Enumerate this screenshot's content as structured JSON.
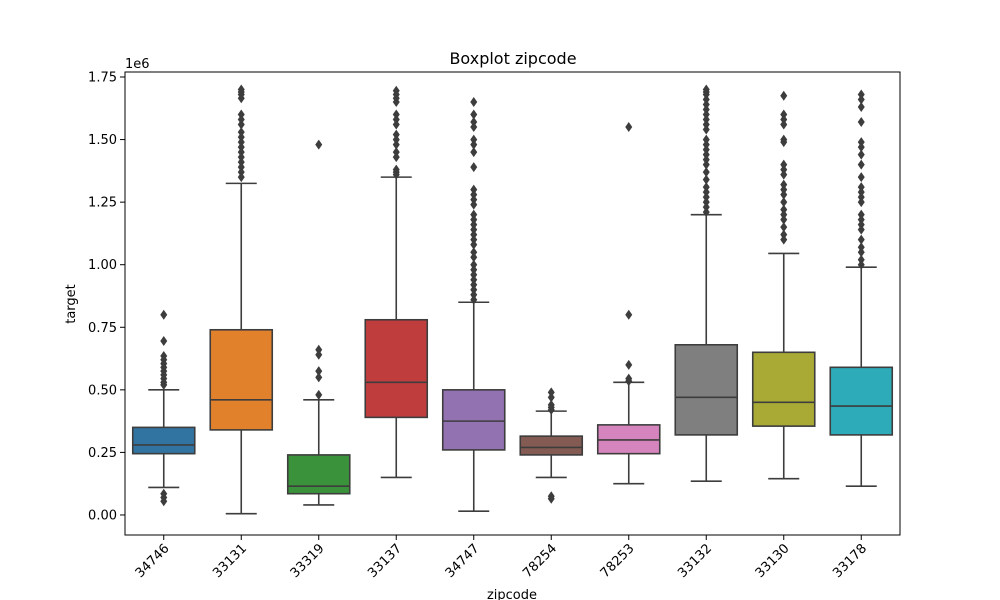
{
  "chart_data": {
    "type": "boxplot",
    "title": "Boxplot zipcode",
    "xlabel": "zipcode",
    "ylabel": "target",
    "y_scale_label": "1e6",
    "ylim": [
      -0.08,
      1.77
    ],
    "yticks": [
      0.0,
      0.25,
      0.5,
      0.75,
      1.0,
      1.25,
      1.5,
      1.75
    ],
    "ytick_labels": [
      "0.00",
      "0.25",
      "0.50",
      "0.75",
      "1.00",
      "1.25",
      "1.50",
      "1.75"
    ],
    "grid": false,
    "categories": [
      "34746",
      "33131",
      "33319",
      "33137",
      "34747",
      "78254",
      "78253",
      "33132",
      "33130",
      "33178"
    ],
    "boxes": [
      {
        "name": "34746",
        "color": "#3274a1",
        "whisker_low": 0.11,
        "q1": 0.245,
        "median": 0.28,
        "q3": 0.35,
        "whisker_high": 0.5,
        "outliers": [
          0.8,
          0.695,
          0.635,
          0.62,
          0.605,
          0.59,
          0.575,
          0.56,
          0.545,
          0.53,
          0.52,
          0.085,
          0.07,
          0.055
        ]
      },
      {
        "name": "33131",
        "color": "#e1812c",
        "whisker_low": 0.005,
        "q1": 0.34,
        "median": 0.46,
        "q3": 0.74,
        "whisker_high": 1.325,
        "outliers": [
          1.7,
          1.69,
          1.68,
          1.665,
          1.6,
          1.58,
          1.56,
          1.53,
          1.51,
          1.49,
          1.47,
          1.45,
          1.43,
          1.41,
          1.39,
          1.37,
          1.35
        ]
      },
      {
        "name": "33319",
        "color": "#3a923a",
        "whisker_low": 0.04,
        "q1": 0.085,
        "median": 0.115,
        "q3": 0.24,
        "whisker_high": 0.46,
        "outliers": [
          1.48,
          0.66,
          0.64,
          0.575,
          0.55,
          0.48
        ]
      },
      {
        "name": "33137",
        "color": "#c03d3e",
        "whisker_low": 0.15,
        "q1": 0.39,
        "median": 0.53,
        "q3": 0.78,
        "whisker_high": 1.35,
        "outliers": [
          1.695,
          1.68,
          1.665,
          1.65,
          1.6,
          1.58,
          1.56,
          1.52,
          1.5,
          1.48,
          1.45,
          1.43,
          1.38,
          1.37,
          1.36
        ]
      },
      {
        "name": "34747",
        "color": "#9372b2",
        "whisker_low": 0.015,
        "q1": 0.26,
        "median": 0.375,
        "q3": 0.5,
        "whisker_high": 0.85,
        "outliers": [
          1.65,
          1.6,
          1.57,
          1.55,
          1.5,
          1.48,
          1.45,
          1.39,
          1.3,
          1.28,
          1.26,
          1.24,
          1.2,
          1.18,
          1.16,
          1.14,
          1.12,
          1.1,
          1.08,
          1.05,
          1.03,
          1.0,
          0.98,
          0.96,
          0.94,
          0.92,
          0.9,
          0.88,
          0.86
        ]
      },
      {
        "name": "78254",
        "color": "#845b53",
        "whisker_low": 0.15,
        "q1": 0.24,
        "median": 0.27,
        "q3": 0.315,
        "whisker_high": 0.415,
        "outliers": [
          0.49,
          0.47,
          0.44,
          0.43,
          0.42,
          0.075,
          0.065
        ]
      },
      {
        "name": "78253",
        "color": "#d684bd",
        "whisker_low": 0.125,
        "q1": 0.245,
        "median": 0.3,
        "q3": 0.36,
        "whisker_high": 0.53,
        "outliers": [
          1.55,
          0.8,
          0.6,
          0.545,
          0.535
        ]
      },
      {
        "name": "33132",
        "color": "#7f7f7f",
        "whisker_low": 0.135,
        "q1": 0.32,
        "median": 0.47,
        "q3": 0.68,
        "whisker_high": 1.2,
        "outliers": [
          1.7,
          1.69,
          1.68,
          1.66,
          1.64,
          1.62,
          1.6,
          1.58,
          1.56,
          1.54,
          1.5,
          1.48,
          1.46,
          1.44,
          1.42,
          1.4,
          1.37,
          1.34,
          1.31,
          1.29,
          1.27,
          1.25,
          1.23,
          1.21
        ]
      },
      {
        "name": "33130",
        "color": "#a9aa35",
        "whisker_low": 0.145,
        "q1": 0.355,
        "median": 0.45,
        "q3": 0.65,
        "whisker_high": 1.045,
        "outliers": [
          1.675,
          1.6,
          1.58,
          1.56,
          1.5,
          1.49,
          1.4,
          1.38,
          1.36,
          1.32,
          1.3,
          1.28,
          1.25,
          1.22,
          1.2,
          1.18,
          1.15,
          1.12,
          1.1
        ]
      },
      {
        "name": "33178",
        "color": "#2eabb8",
        "whisker_low": 0.115,
        "q1": 0.32,
        "median": 0.435,
        "q3": 0.59,
        "whisker_high": 0.99,
        "outliers": [
          1.68,
          1.66,
          1.63,
          1.57,
          1.49,
          1.47,
          1.44,
          1.4,
          1.35,
          1.31,
          1.29,
          1.27,
          1.25,
          1.2,
          1.18,
          1.16,
          1.14,
          1.1,
          1.07,
          1.05,
          1.02,
          1.0
        ]
      }
    ]
  }
}
